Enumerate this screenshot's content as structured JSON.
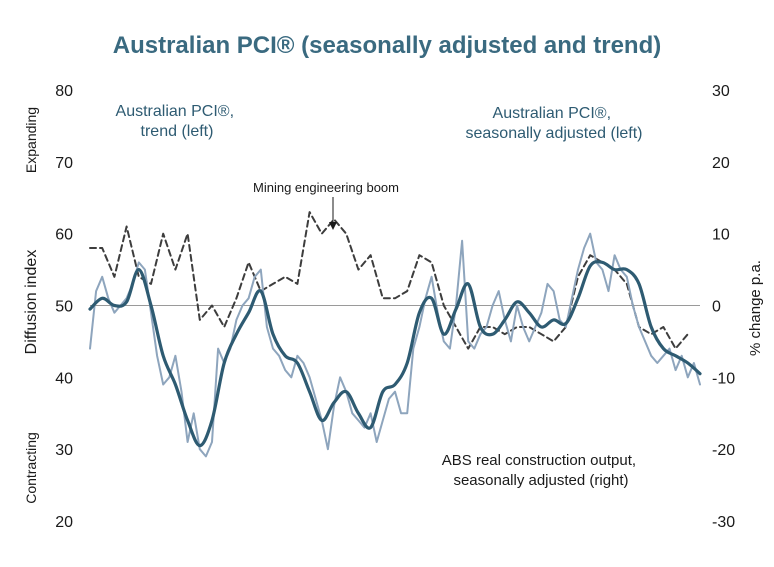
{
  "chart_data": {
    "type": "line",
    "title": "Australian PCI® (seasonally adjusted and trend)",
    "left_axis": {
      "label": "Diffusion index",
      "ticks": [
        80,
        70,
        60,
        50,
        40,
        30,
        20
      ],
      "ylim": [
        20,
        80
      ],
      "top_label": "Expanding",
      "bottom_label": "Contracting"
    },
    "right_axis": {
      "label": "% change p.a.",
      "ticks": [
        30,
        20,
        10,
        0,
        -10,
        -20,
        -30
      ],
      "ylim": [
        -30,
        30
      ]
    },
    "reference_line": {
      "axis": "left",
      "value": 50
    },
    "annotations": {
      "trend_label_line1": "Australian PCI®,",
      "trend_label_line2": "trend (left)",
      "sa_label_line1": "Australian PCI®,",
      "sa_label_line2": "seasonally adjusted (left)",
      "abs_label_line1": "ABS real construction output,",
      "abs_label_line2": "seasonally adjusted (right)",
      "mining_label": "Mining engineering boom"
    },
    "x_range": [
      0,
      100
    ],
    "series": [
      {
        "name": "Australian PCI®, seasonally adjusted (left)",
        "axis": "left",
        "style": "thin-light",
        "color": "#8ea5bd",
        "x": [
          0,
          1,
          2,
          3,
          4,
          5,
          6,
          7,
          8,
          9,
          10,
          11,
          12,
          13,
          14,
          15,
          16,
          17,
          18,
          19,
          20,
          21,
          22,
          23,
          24,
          25,
          26,
          27,
          28,
          29,
          30,
          31,
          32,
          33,
          34,
          35,
          36,
          37,
          38,
          39,
          40,
          41,
          42,
          43,
          44,
          45,
          46,
          47,
          48,
          49,
          50,
          51,
          52,
          53,
          54,
          55,
          56,
          57,
          58,
          59,
          60,
          61,
          62,
          63,
          64,
          65,
          66,
          67,
          68,
          69,
          70,
          71,
          72,
          73,
          74,
          75,
          76,
          77,
          78,
          79,
          80,
          81,
          82,
          83,
          84,
          85,
          86,
          87,
          88,
          89,
          90,
          91,
          92,
          93,
          94,
          95,
          96,
          97,
          98,
          99,
          100
        ],
        "values": [
          44,
          52,
          54,
          51,
          49,
          50,
          51,
          53,
          56,
          55,
          49,
          43,
          39,
          40,
          43,
          38,
          31,
          35,
          30,
          29,
          31,
          44,
          42,
          44,
          48,
          50,
          51,
          54,
          55,
          47,
          44,
          43,
          41,
          40,
          43,
          42,
          40,
          37,
          34,
          30,
          36,
          40,
          38,
          35,
          34,
          33,
          35,
          31,
          34,
          37,
          38,
          35,
          35,
          44,
          47,
          51,
          54,
          49,
          45,
          44,
          50,
          59,
          45,
          44,
          46,
          47,
          50,
          52,
          48,
          45,
          50,
          47,
          45,
          47,
          49,
          53,
          52,
          48,
          47,
          51,
          55,
          58,
          60,
          56,
          55,
          52,
          57,
          55,
          54,
          50,
          47,
          45,
          43,
          42,
          43,
          44,
          41,
          43,
          40,
          42,
          39
        ]
      },
      {
        "name": "Australian PCI®, trend (left)",
        "axis": "left",
        "style": "thick-dark",
        "color": "#2e5b72",
        "x": [
          0,
          2,
          4,
          6,
          8,
          10,
          12,
          14,
          16,
          18,
          20,
          22,
          24,
          26,
          28,
          30,
          32,
          34,
          36,
          38,
          40,
          42,
          44,
          46,
          48,
          50,
          52,
          54,
          56,
          58,
          60,
          62,
          64,
          66,
          68,
          70,
          72,
          74,
          76,
          78,
          80,
          82,
          84,
          86,
          88,
          90,
          92,
          94,
          96,
          98,
          100
        ],
        "values": [
          49.5,
          51,
          50,
          50.5,
          55,
          50,
          43,
          39,
          34,
          30.5,
          34,
          42,
          46,
          49,
          52,
          46,
          43,
          42,
          38,
          34,
          36.5,
          38,
          35,
          33,
          38,
          39,
          42,
          49,
          51,
          46,
          49.5,
          53,
          47,
          46,
          48,
          50.5,
          49,
          47,
          48,
          47.5,
          51,
          55.5,
          56,
          55,
          55,
          53,
          47,
          44,
          43,
          42,
          40.5
        ]
      },
      {
        "name": "ABS real construction output, seasonally adjusted (right)",
        "axis": "right",
        "style": "dashed",
        "color": "#3d3d3d",
        "x": [
          0,
          2,
          4,
          6,
          8,
          10,
          12,
          14,
          16,
          18,
          20,
          22,
          24,
          26,
          28,
          30,
          32,
          34,
          36,
          38,
          40,
          42,
          44,
          46,
          48,
          50,
          52,
          54,
          56,
          58,
          60,
          62,
          64,
          66,
          68,
          70,
          72,
          74,
          76,
          78,
          80,
          82,
          84,
          86,
          88,
          90,
          92,
          94,
          96,
          98
        ],
        "values": [
          8,
          8,
          4,
          11,
          4,
          3,
          10,
          5,
          10,
          -2,
          0,
          -3,
          1,
          6,
          2,
          3,
          4,
          3,
          13,
          10,
          12,
          10,
          5,
          7,
          1,
          1,
          2,
          7,
          6,
          0,
          -3,
          -6,
          -3,
          -3,
          -4,
          -3,
          -3,
          -4,
          -5,
          -3,
          4,
          7,
          6,
          5,
          3,
          -3,
          -4,
          -3,
          -6,
          -4
        ]
      }
    ]
  }
}
